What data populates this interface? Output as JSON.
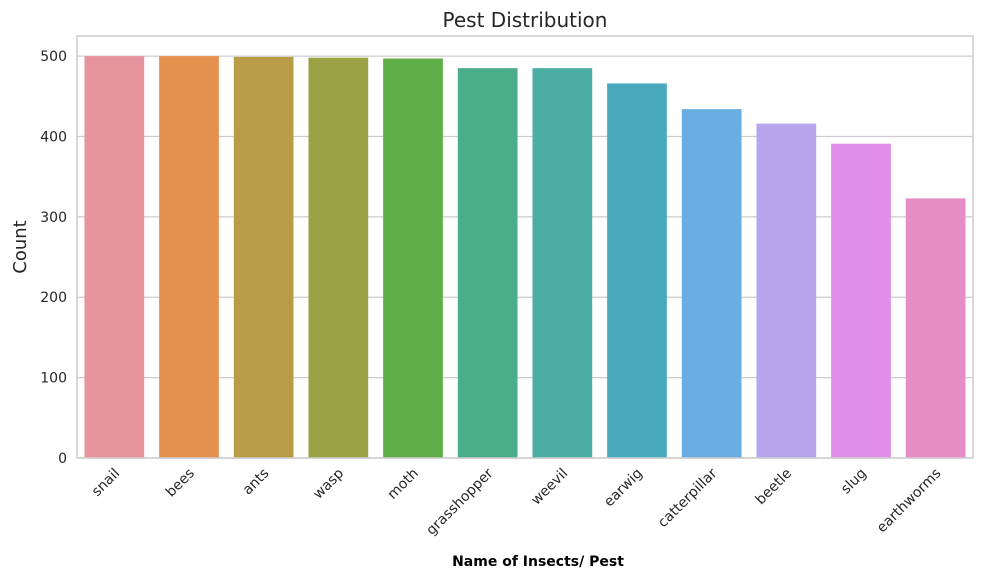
{
  "chart_data": {
    "type": "bar",
    "title": "Pest Distribution",
    "xlabel": "Name of Insects/ Pest",
    "ylabel": "Count",
    "categories": [
      "snail",
      "bees",
      "ants",
      "wasp",
      "moth",
      "grasshopper",
      "weevil",
      "earwig",
      "catterpillar",
      "beetle",
      "slug",
      "earthworms"
    ],
    "values": [
      500,
      500,
      499,
      498,
      497,
      485,
      485,
      466,
      434,
      416,
      391,
      323
    ],
    "colors": [
      "#e8949f",
      "#e49150",
      "#b99c48",
      "#9aa244",
      "#5fae47",
      "#4aae8a",
      "#4bada3",
      "#4aaabd",
      "#68aee3",
      "#b7a6ee",
      "#e08ee8",
      "#e78dc5"
    ],
    "ylim": [
      0,
      525
    ],
    "yticks": [
      0,
      100,
      200,
      300,
      400,
      500
    ],
    "grid": true,
    "legend": "none"
  }
}
